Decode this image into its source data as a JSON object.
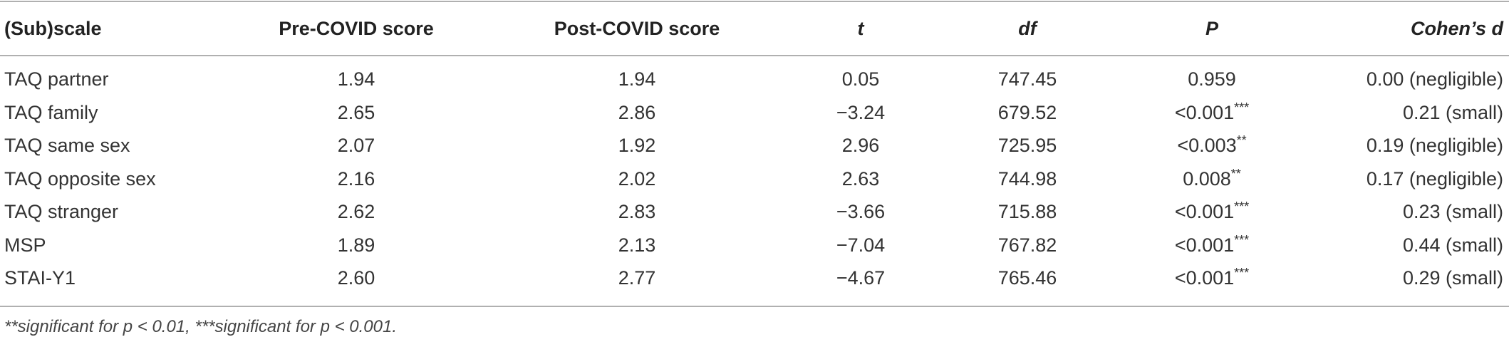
{
  "table": {
    "header": [
      "(Sub)scale",
      "Pre-COVID score",
      "Post-COVID score",
      "t",
      "df",
      "P",
      "Cohen’s d"
    ],
    "rows": [
      {
        "subscale": "TAQ partner",
        "pre": "1.94",
        "post": "1.94",
        "t": "0.05",
        "df": "747.45",
        "p": "0.959",
        "d": "0.00 (negligible)"
      },
      {
        "subscale": "TAQ family",
        "pre": "2.65",
        "post": "2.86",
        "t": "−3.24",
        "df": "679.52",
        "p": "<0.001",
        "p_sig": "***",
        "d": "0.21 (small)"
      },
      {
        "subscale": "TAQ same sex",
        "pre": "2.07",
        "post": "1.92",
        "t": "2.96",
        "df": "725.95",
        "p": "<0.003",
        "p_sig": "**",
        "d": "0.19 (negligible)"
      },
      {
        "subscale": "TAQ opposite sex",
        "pre": "2.16",
        "post": "2.02",
        "t": "2.63",
        "df": "744.98",
        "p": "0.008",
        "p_sig": "**",
        "d": "0.17 (negligible)"
      },
      {
        "subscale": "TAQ stranger",
        "pre": "2.62",
        "post": "2.83",
        "t": "−3.66",
        "df": "715.88",
        "p": "<0.001",
        "p_sig": "***",
        "d": "0.23 (small)"
      },
      {
        "subscale": "MSP",
        "pre": "1.89",
        "post": "2.13",
        "t": "−7.04",
        "df": "767.82",
        "p": "<0.001",
        "p_sig": "***",
        "d": "0.44 (small)"
      },
      {
        "subscale": "STAI-Y1",
        "pre": "2.60",
        "post": "2.77",
        "t": "−4.67",
        "df": "765.46",
        "p": "<0.001",
        "p_sig": "***",
        "d": "0.29 (small)"
      }
    ],
    "footnote": "**significant for p < 0.01, ***significant for p < 0.001."
  }
}
